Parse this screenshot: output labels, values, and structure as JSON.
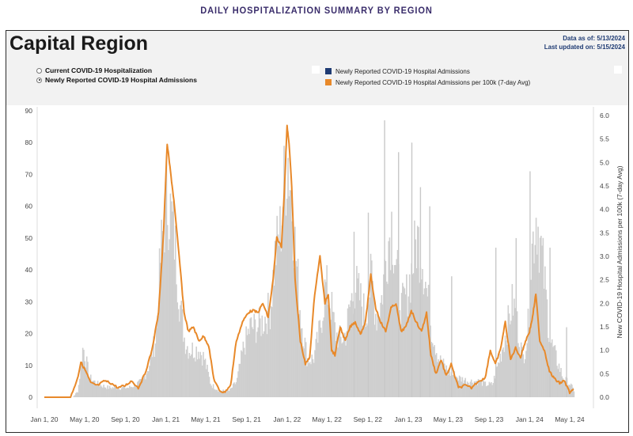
{
  "page_heading": "DAILY HOSPITALIZATION SUMMARY BY REGION",
  "region_title": "Capital Region",
  "data_as_of": "Data as of: 5/13/2024",
  "last_updated": "Last updated on: 5/15/2024",
  "radio_options": [
    {
      "label": "Current COVID-19 Hospitalization",
      "selected": false
    },
    {
      "label": "Newly Reported COVID-19 Hospital Admissions",
      "selected": true
    }
  ],
  "colors": {
    "bars": "#cfcfcf",
    "line": "#e8892a",
    "admissions_swatch": "#1f3b73",
    "heading": "#3a2d6b"
  },
  "chart_data": {
    "type": "bar",
    "title": "",
    "xlabel": "",
    "ylabel_left": "",
    "ylabel_right": "New COVID-19 Hospital Admissions per 100k (7-day Avg)",
    "x_range": [
      "2020-01-01",
      "2024-05-13"
    ],
    "x_ticks": [
      "Jan 1, 20",
      "May 1, 20",
      "Sep 1, 20",
      "Jan 1, 21",
      "May 1, 21",
      "Sep 1, 21",
      "Jan 1, 22",
      "May 1, 22",
      "Sep 1, 22",
      "Jan 1, 23",
      "May 1, 23",
      "Sep 1, 23",
      "Jan 1, 24",
      "May 1, 24"
    ],
    "y_left_range": [
      0,
      90
    ],
    "y_left_ticks": [
      0,
      10,
      20,
      30,
      40,
      50,
      60,
      70,
      80,
      90
    ],
    "y_right_range": [
      0,
      6.2
    ],
    "y_right_ticks": [
      "0.0",
      "0.5",
      "1.0",
      "1.5",
      "2.0",
      "2.5",
      "3.0",
      "3.5",
      "4.0",
      "4.5",
      "5.0",
      "5.5",
      "6.0"
    ],
    "grid": false,
    "legend_position": "top-right",
    "series": [
      {
        "name": "Newly Reported COVID-19 Hospital Admissions",
        "type": "bar",
        "axis": "left",
        "color": "#cfcfcf",
        "x": [
          "2020-03-01",
          "2020-03-25",
          "2020-04-10",
          "2020-04-25",
          "2020-05-15",
          "2020-06-10",
          "2020-07-10",
          "2020-08-10",
          "2020-09-10",
          "2020-10-01",
          "2020-10-20",
          "2020-11-10",
          "2020-12-01",
          "2020-12-15",
          "2021-01-01",
          "2021-01-10",
          "2021-01-25",
          "2021-02-10",
          "2021-02-25",
          "2021-03-10",
          "2021-03-25",
          "2021-04-10",
          "2021-04-25",
          "2021-05-15",
          "2021-06-10",
          "2021-07-10",
          "2021-08-01",
          "2021-08-20",
          "2021-09-10",
          "2021-10-01",
          "2021-10-20",
          "2021-11-10",
          "2021-11-25",
          "2021-12-10",
          "2021-12-20",
          "2022-01-01",
          "2022-01-10",
          "2022-01-25",
          "2022-02-10",
          "2022-03-01",
          "2022-03-20",
          "2022-04-10",
          "2022-04-25",
          "2022-05-10",
          "2022-05-25",
          "2022-06-10",
          "2022-06-25",
          "2022-07-10",
          "2022-07-25",
          "2022-08-10",
          "2022-08-25",
          "2022-09-10",
          "2022-09-25",
          "2022-10-10",
          "2022-10-25",
          "2022-11-10",
          "2022-11-25",
          "2022-12-10",
          "2022-12-25",
          "2023-01-10",
          "2023-01-25",
          "2023-02-10",
          "2023-02-25",
          "2023-03-10",
          "2023-04-01",
          "2023-05-01",
          "2023-06-01",
          "2023-07-01",
          "2023-08-01",
          "2023-08-20",
          "2023-09-10",
          "2023-10-01",
          "2023-10-20",
          "2023-11-10",
          "2023-11-25",
          "2023-12-10",
          "2023-12-25",
          "2024-01-05",
          "2024-01-20",
          "2024-02-10",
          "2024-03-01",
          "2024-03-20",
          "2024-04-10",
          "2024-05-01",
          "2024-05-13"
        ],
        "values": [
          0,
          0,
          2,
          16,
          6,
          4,
          3,
          3,
          3,
          4,
          5,
          10,
          19,
          45,
          62,
          60,
          50,
          30,
          18,
          15,
          15,
          15,
          12,
          4,
          2,
          2,
          5,
          15,
          22,
          22,
          24,
          28,
          45,
          52,
          65,
          77,
          66,
          45,
          25,
          12,
          12,
          22,
          35,
          30,
          20,
          18,
          20,
          30,
          35,
          30,
          25,
          38,
          25,
          30,
          45,
          55,
          40,
          28,
          32,
          40,
          50,
          45,
          32,
          22,
          12,
          8,
          6,
          5,
          5,
          4,
          4,
          12,
          20,
          30,
          22,
          12,
          20,
          45,
          58,
          40,
          18,
          12,
          6,
          4,
          2
        ]
      },
      {
        "name": "Newly Reported COVID-19 Hospital Admissions per 100k (7-day Avg)",
        "type": "line",
        "axis": "right",
        "color": "#e8892a",
        "x": [
          "2020-01-01",
          "2020-03-20",
          "2020-04-10",
          "2020-04-20",
          "2020-05-05",
          "2020-05-20",
          "2020-06-10",
          "2020-07-01",
          "2020-07-20",
          "2020-08-10",
          "2020-09-01",
          "2020-09-20",
          "2020-10-10",
          "2020-10-30",
          "2020-11-20",
          "2020-12-10",
          "2020-12-25",
          "2021-01-05",
          "2021-01-15",
          "2021-01-25",
          "2021-02-10",
          "2021-02-25",
          "2021-03-10",
          "2021-03-25",
          "2021-04-10",
          "2021-04-25",
          "2021-05-10",
          "2021-05-25",
          "2021-06-10",
          "2021-06-25",
          "2021-07-15",
          "2021-08-01",
          "2021-08-20",
          "2021-09-05",
          "2021-09-20",
          "2021-10-05",
          "2021-10-20",
          "2021-11-05",
          "2021-11-20",
          "2021-12-01",
          "2021-12-15",
          "2021-12-25",
          "2022-01-01",
          "2022-01-08",
          "2022-01-15",
          "2022-01-25",
          "2022-02-10",
          "2022-02-25",
          "2022-03-10",
          "2022-03-25",
          "2022-04-10",
          "2022-04-25",
          "2022-05-05",
          "2022-05-15",
          "2022-05-25",
          "2022-06-10",
          "2022-06-25",
          "2022-07-10",
          "2022-07-25",
          "2022-08-10",
          "2022-08-25",
          "2022-09-10",
          "2022-09-25",
          "2022-10-10",
          "2022-10-25",
          "2022-11-10",
          "2022-11-25",
          "2022-12-10",
          "2022-12-25",
          "2023-01-10",
          "2023-01-25",
          "2023-02-10",
          "2023-02-25",
          "2023-03-10",
          "2023-03-25",
          "2023-04-10",
          "2023-04-25",
          "2023-05-10",
          "2023-06-01",
          "2023-06-20",
          "2023-07-10",
          "2023-08-01",
          "2023-08-20",
          "2023-09-05",
          "2023-09-20",
          "2023-10-05",
          "2023-10-20",
          "2023-11-05",
          "2023-11-20",
          "2023-12-05",
          "2023-12-20",
          "2024-01-01",
          "2024-01-10",
          "2024-01-20",
          "2024-02-01",
          "2024-02-15",
          "2024-03-01",
          "2024-03-15",
          "2024-04-01",
          "2024-04-15",
          "2024-05-01",
          "2024-05-13"
        ],
        "values": [
          0.0,
          0.0,
          0.4,
          0.75,
          0.55,
          0.3,
          0.25,
          0.35,
          0.3,
          0.2,
          0.25,
          0.35,
          0.2,
          0.5,
          1.0,
          1.8,
          3.5,
          5.4,
          4.8,
          4.2,
          3.0,
          1.8,
          1.4,
          1.5,
          1.2,
          1.3,
          1.1,
          0.4,
          0.15,
          0.1,
          0.25,
          1.2,
          1.6,
          1.8,
          1.85,
          1.8,
          2.0,
          1.7,
          2.5,
          3.4,
          3.2,
          4.6,
          5.8,
          5.3,
          4.5,
          2.5,
          1.2,
          0.7,
          0.85,
          2.2,
          3.0,
          2.0,
          2.2,
          1.0,
          0.9,
          1.5,
          1.2,
          1.5,
          1.6,
          1.35,
          1.6,
          2.6,
          1.9,
          1.6,
          1.4,
          1.9,
          2.0,
          1.4,
          1.5,
          1.85,
          1.6,
          1.4,
          1.8,
          0.9,
          0.5,
          0.8,
          0.45,
          0.7,
          0.2,
          0.25,
          0.2,
          0.35,
          0.4,
          1.0,
          0.7,
          1.0,
          1.6,
          0.8,
          1.05,
          0.85,
          1.2,
          1.4,
          1.7,
          2.2,
          1.2,
          1.0,
          0.55,
          0.4,
          0.3,
          0.35,
          0.1,
          0.15
        ]
      }
    ]
  }
}
